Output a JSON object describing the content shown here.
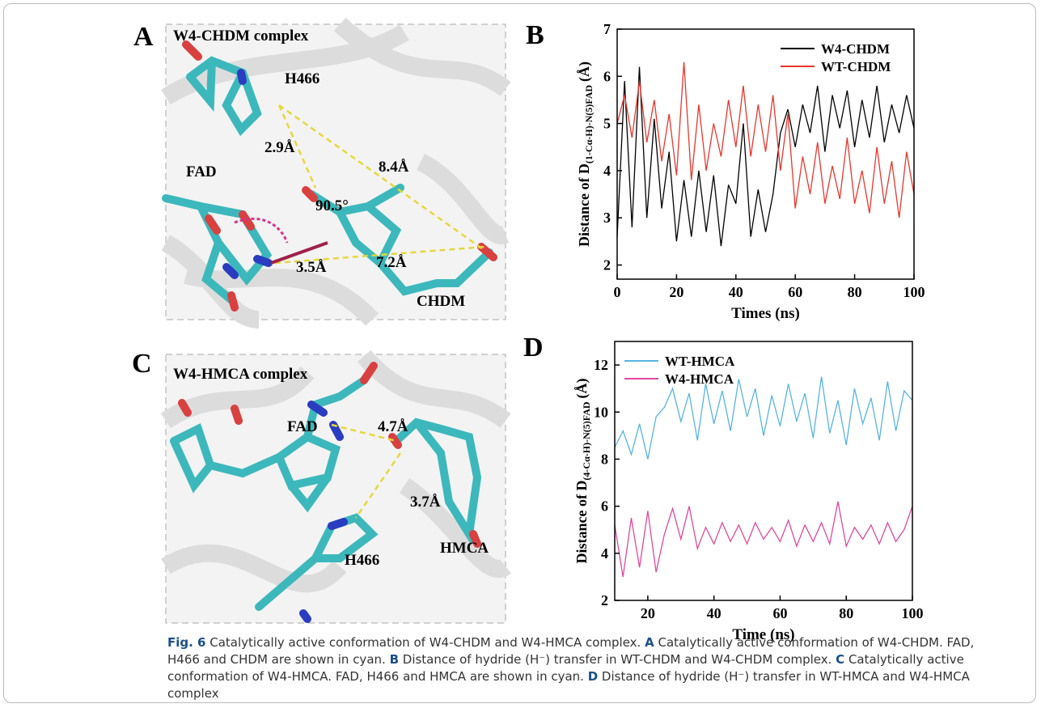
{
  "panels": [
    {
      "label": "A",
      "texts": [
        "W4-CHDM complex",
        "H466",
        "2.9Å",
        "8.4Å",
        "FAD",
        "90.5°",
        "3.5Å",
        "7.2Å",
        "CHDM"
      ]
    },
    {
      "label": "C",
      "texts": [
        "W4-HMCA complex",
        "FAD",
        "4.7Å",
        "3.7Å",
        "H466",
        "HMCA"
      ]
    }
  ],
  "chart_data": [
    {
      "type": "line",
      "panel_label": "B",
      "x_label": "Times (ns)",
      "y_label": {
        "main": "Distance of D",
        "sub": "(1-Cα-H)-N(5)FAD",
        "unit": "(Å)"
      },
      "x": [
        0,
        2.5,
        5,
        7.5,
        10,
        12.5,
        15,
        17.5,
        20,
        22.5,
        25,
        27.5,
        30,
        32.5,
        35,
        37.5,
        40,
        42.5,
        45,
        47.5,
        50,
        52.5,
        55,
        57.5,
        60,
        62.5,
        65,
        67.5,
        70,
        72.5,
        75,
        77.5,
        80,
        82.5,
        85,
        87.5,
        90,
        92.5,
        95,
        97.5,
        100
      ],
      "xlim": [
        0,
        100
      ],
      "xticks": [
        0,
        20,
        40,
        60,
        80,
        100
      ],
      "ylim": [
        1.7,
        7
      ],
      "yticks": [
        2,
        3,
        4,
        5,
        6,
        7
      ],
      "legend": "upper right",
      "series": [
        {
          "name": "W4-CHDM",
          "color": "#000000",
          "values": [
            2.6,
            5.9,
            2.8,
            6.2,
            3.0,
            5.1,
            3.2,
            4.4,
            2.5,
            3.8,
            2.6,
            4.0,
            2.7,
            3.9,
            2.4,
            3.7,
            3.3,
            5.0,
            2.6,
            3.6,
            2.7,
            3.5,
            4.8,
            5.3,
            4.5,
            5.4,
            4.8,
            5.8,
            4.4,
            5.6,
            4.9,
            5.7,
            4.5,
            5.5,
            4.7,
            5.8,
            4.6,
            5.4,
            4.8,
            5.6,
            4.9
          ]
        },
        {
          "name": "WT-CHDM",
          "color": "#e8362c",
          "values": [
            5.0,
            5.6,
            4.7,
            5.9,
            4.6,
            5.5,
            4.2,
            5.2,
            3.9,
            6.3,
            3.8,
            5.4,
            4.0,
            5.0,
            4.3,
            5.5,
            4.5,
            5.8,
            4.3,
            5.4,
            4.4,
            5.6,
            4.0,
            5.2,
            3.2,
            4.3,
            3.5,
            4.6,
            3.3,
            4.1,
            3.4,
            4.7,
            3.3,
            4.0,
            3.1,
            4.5,
            3.3,
            4.2,
            3.0,
            4.4,
            3.5
          ]
        }
      ]
    },
    {
      "type": "line",
      "panel_label": "D",
      "x_label": "Time (ns)",
      "y_label": {
        "main": "Distance of D",
        "sub": "(4-Cα-H)-N(5)FAD",
        "unit": "(Å)"
      },
      "x": [
        10,
        12.5,
        15,
        17.5,
        20,
        22.5,
        25,
        27.5,
        30,
        32.5,
        35,
        37.5,
        40,
        42.5,
        45,
        47.5,
        50,
        52.5,
        55,
        57.5,
        60,
        62.5,
        65,
        67.5,
        70,
        72.5,
        75,
        77.5,
        80,
        82.5,
        85,
        87.5,
        90,
        92.5,
        95,
        97.5,
        100
      ],
      "xlim": [
        10,
        100
      ],
      "xticks": [
        20,
        40,
        60,
        80,
        100
      ],
      "ylim": [
        2,
        13
      ],
      "yticks": [
        2,
        4,
        6,
        8,
        10,
        12
      ],
      "legend": "upper left",
      "series": [
        {
          "name": "WT-HMCA",
          "color": "#56b4e3",
          "values": [
            8.5,
            9.2,
            8.2,
            9.5,
            8.0,
            9.8,
            10.2,
            11.0,
            9.6,
            10.8,
            8.8,
            11.2,
            9.5,
            10.9,
            9.2,
            11.4,
            9.8,
            11.0,
            9.0,
            10.7,
            9.4,
            11.2,
            9.6,
            10.8,
            8.9,
            11.5,
            9.1,
            10.5,
            8.6,
            11.0,
            9.5,
            10.6,
            8.8,
            11.3,
            9.2,
            10.9,
            10.5
          ]
        },
        {
          "name": "W4-HMCA",
          "color": "#e0489a",
          "values": [
            5.2,
            3.0,
            5.5,
            3.4,
            5.8,
            3.2,
            4.8,
            5.9,
            4.6,
            6.0,
            4.2,
            5.1,
            4.4,
            5.3,
            4.5,
            5.2,
            4.4,
            5.3,
            4.6,
            5.1,
            4.5,
            5.4,
            4.3,
            5.2,
            4.5,
            5.3,
            4.4,
            6.2,
            4.3,
            5.1,
            4.6,
            5.2,
            4.4,
            5.3,
            4.5,
            5.0,
            6.0
          ]
        }
      ]
    }
  ],
  "caption": [
    {
      "text": "Fig. 6",
      "bold": true
    },
    {
      "text": "  Catalytically active conformation of W4-CHDM and W4-HMCA complex. ",
      "bold": false
    },
    {
      "text": "A",
      "bold": true
    },
    {
      "text": " Catalytically active conformation of W4-CHDM. FAD, H466 and CHDM are shown in cyan. ",
      "bold": false
    },
    {
      "text": "B",
      "bold": true
    },
    {
      "text": " Distance of hydride (H⁻) transfer in WT-CHDM and W4-CHDM complex. ",
      "bold": false
    },
    {
      "text": "C",
      "bold": true
    },
    {
      "text": " Catalytically active conformation of W4-HMCA. FAD, H466 and HMCA are shown in cyan. ",
      "bold": false
    },
    {
      "text": "D",
      "bold": true
    },
    {
      "text": " Distance of hydride (H⁻) transfer in WT-HMCA and W4-HMCA complex",
      "bold": false
    }
  ]
}
